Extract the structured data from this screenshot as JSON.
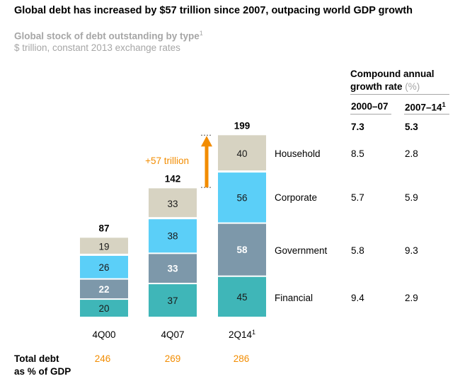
{
  "title": "Global debt has increased by $57 trillion since 2007, outpacing world GDP growth",
  "subtitle": "Global stock of debt outstanding by type",
  "subtitle_note": "1",
  "units": "$ trillion, constant 2013 exchange rates",
  "colors": {
    "Household": "#d7d3c2",
    "Corporate": "#5bcff8",
    "Government": "#7d98aa",
    "Financial": "#3fb6b8",
    "arrow": "#f28c00",
    "gdp_text": "#f28c00"
  },
  "chart_data": {
    "type": "bar",
    "stacked": true,
    "title": "Global stock of debt outstanding by type",
    "ylabel": "$ trillion, constant 2013 exchange rates",
    "categories": [
      "4Q00",
      "4Q07",
      "2Q14"
    ],
    "category_notes": [
      "",
      "",
      "1"
    ],
    "series": [
      {
        "name": "Financial",
        "values": [
          20,
          37,
          45
        ]
      },
      {
        "name": "Government",
        "values": [
          22,
          33,
          58
        ]
      },
      {
        "name": "Corporate",
        "values": [
          26,
          38,
          56
        ]
      },
      {
        "name": "Household",
        "values": [
          19,
          33,
          40
        ]
      }
    ],
    "totals": [
      87,
      142,
      199
    ],
    "annotation": "+57 trillion",
    "gdp_row_label": "Total debt as % of GDP",
    "gdp_values": [
      "246",
      "269",
      "286"
    ]
  },
  "cagr": {
    "header_line1": "Compound annual",
    "header_line2": "growth rate",
    "header_unit": "(%)",
    "col1": "2000–07",
    "col2": "2007–14",
    "col2_note": "1",
    "total": [
      "7.3",
      "5.3"
    ],
    "rows": [
      {
        "label": "Household",
        "v1": "8.5",
        "v2": "2.8"
      },
      {
        "label": "Corporate",
        "v1": "5.7",
        "v2": "5.9"
      },
      {
        "label": "Government",
        "v1": "5.8",
        "v2": "9.3"
      },
      {
        "label": "Financial",
        "v1": "9.4",
        "v2": "2.9"
      }
    ]
  },
  "gdp_label_line1": "Total debt",
  "gdp_label_line2": "as % of GDP"
}
